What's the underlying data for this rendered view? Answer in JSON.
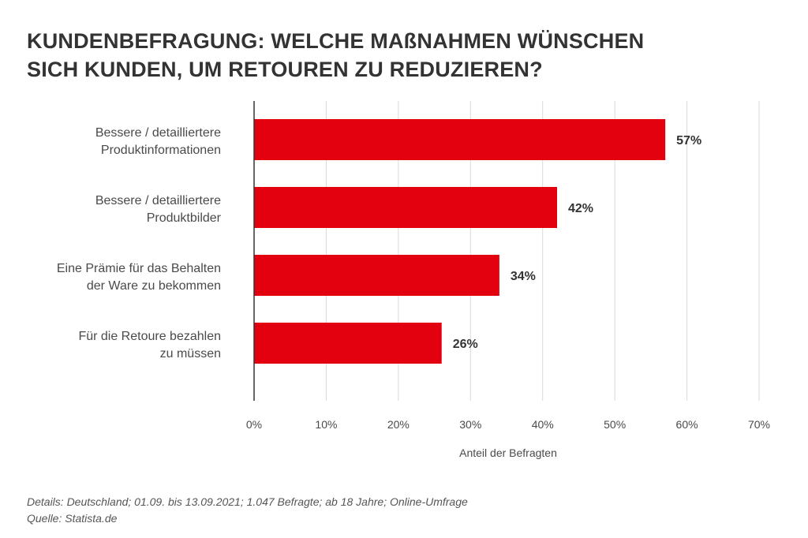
{
  "title_lines": [
    "KUNDENBEFRAGUNG: WELCHE MAßNAHMEN WÜNSCHEN",
    "SICH KUNDEN, UM RETOUREN ZU REDUZIEREN?"
  ],
  "footer": {
    "details": "Details: Deutschland; 01.09. bis 13.09.2021; 1.047 Befragte; ab 18 Jahre; Online-Umfrage",
    "source": "Quelle: Statista.de"
  },
  "chart_data": {
    "type": "bar",
    "orientation": "horizontal",
    "title": "KUNDENBEFRAGUNG: WELCHE MAßNAHMEN WÜNSCHEN SICH KUNDEN, UM RETOUREN ZU REDUZIEREN?",
    "categories": [
      [
        "Bessere / detailliertere",
        "Produktinformationen"
      ],
      [
        "Bessere / detailliertere",
        "Produktbilder"
      ],
      [
        "Eine Prämie für das Behalten",
        "der Ware zu bekommen"
      ],
      [
        "Für die Retoure bezahlen",
        "zu müssen"
      ]
    ],
    "values": [
      57,
      42,
      34,
      26
    ],
    "value_labels": [
      "57%",
      "42%",
      "34%",
      "26%"
    ],
    "xlabel": "Anteil der Befragten",
    "ylabel": "",
    "xlim": [
      0,
      70
    ],
    "ticks": [
      0,
      10,
      20,
      30,
      40,
      50,
      60,
      70
    ],
    "tick_labels": [
      "0%",
      "10%",
      "20%",
      "30%",
      "40%",
      "50%",
      "60%",
      "70%"
    ],
    "grid": "vertical",
    "legend": "none",
    "bar_color": "#e3000f",
    "grid_color": "#d9d9d9",
    "axis_color": "#333333"
  }
}
